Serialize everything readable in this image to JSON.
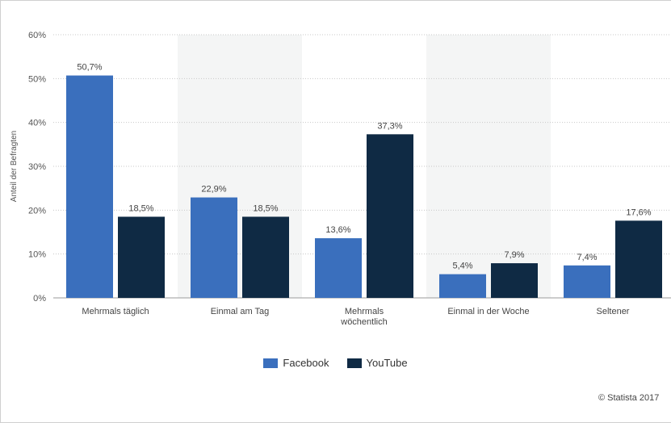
{
  "chart_data": {
    "type": "bar",
    "ylabel": "Anteil der Befragten",
    "ylim": [
      0,
      60
    ],
    "yticks": [
      "0%",
      "10%",
      "20%",
      "30%",
      "40%",
      "50%",
      "60%"
    ],
    "ytick_values": [
      0,
      10,
      20,
      30,
      40,
      50,
      60
    ],
    "categories": [
      [
        "Mehrmals täglich"
      ],
      [
        "Einmal am Tag"
      ],
      [
        "Mehrmals",
        "wöchentlich"
      ],
      [
        "Einmal in der Woche"
      ],
      [
        "Seltener"
      ]
    ],
    "series": [
      {
        "name": "Facebook",
        "color": "#3a6fbd",
        "values": [
          50.7,
          22.9,
          13.6,
          5.4,
          7.4
        ],
        "labels": [
          "50,7%",
          "22,9%",
          "13,6%",
          "5,4%",
          "7,4%"
        ]
      },
      {
        "name": "YouTube",
        "color": "#0f2a44",
        "values": [
          18.5,
          18.5,
          37.3,
          7.9,
          17.6
        ],
        "labels": [
          "18,5%",
          "18,5%",
          "37,3%",
          "7,9%",
          "17,6%"
        ]
      }
    ],
    "grid": true,
    "legend": "bottom-center",
    "alternating_band_color": "#f4f5f5"
  },
  "credit": "© Statista 2017"
}
